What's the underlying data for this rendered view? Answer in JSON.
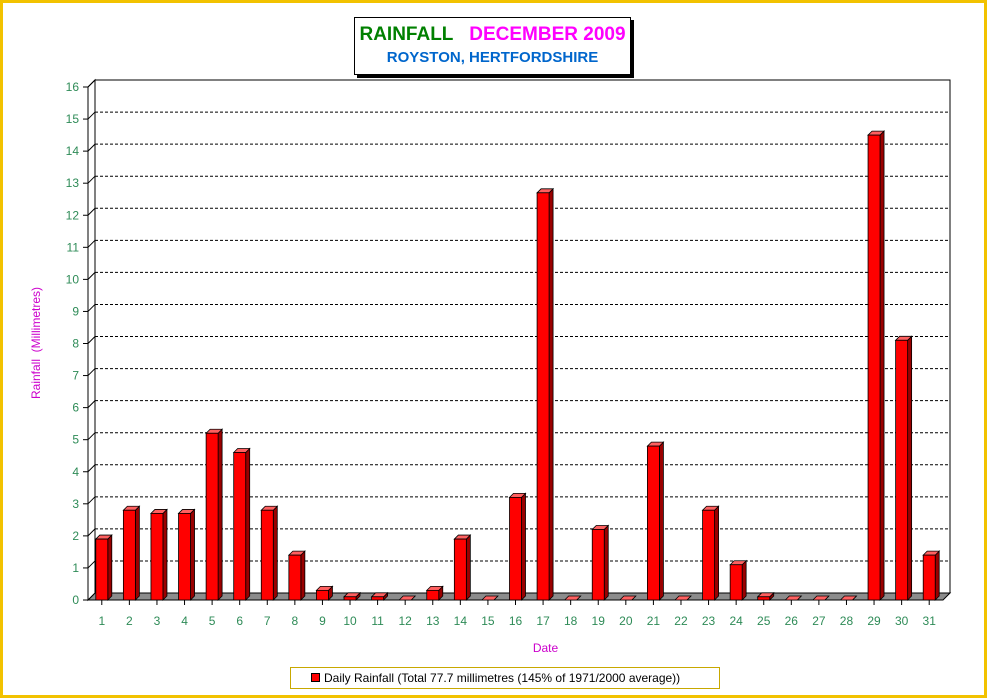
{
  "title": {
    "part1": "RAINFALL",
    "part2": "DECEMBER 2009",
    "subtitle": "ROYSTON, HERTFORDSHIRE"
  },
  "colors": {
    "frame": "#f2c200",
    "title_part1": "#008000",
    "title_part2": "#ff00ff",
    "subtitle": "#0066cc",
    "bar_front": "#ff0000",
    "bar_top": "#ff6060",
    "bar_side": "#9a0000",
    "axis_text": "#2e8b57",
    "axis_title": "#cc00cc"
  },
  "legend": {
    "label": "Daily Rainfall (Total 77.7 millimetres (145% of 1971/2000 average))"
  },
  "chart_data": {
    "type": "bar",
    "xlabel": "Date",
    "ylabel": "Rainfall  (Millimetres)",
    "ylim": [
      0,
      16
    ],
    "yticks": [
      0,
      1,
      2,
      3,
      4,
      5,
      6,
      7,
      8,
      9,
      10,
      11,
      12,
      13,
      14,
      15,
      16
    ],
    "grid": true,
    "legend_position": "bottom",
    "categories": [
      "1",
      "2",
      "3",
      "4",
      "5",
      "6",
      "7",
      "8",
      "9",
      "10",
      "11",
      "12",
      "13",
      "14",
      "15",
      "16",
      "17",
      "18",
      "19",
      "20",
      "21",
      "22",
      "23",
      "24",
      "25",
      "26",
      "27",
      "28",
      "29",
      "30",
      "31"
    ],
    "series": [
      {
        "name": "Daily Rainfall (Total 77.7 millimetres (145% of 1971/2000 average))",
        "values": [
          1.9,
          2.8,
          2.7,
          2.7,
          5.2,
          4.6,
          2.8,
          1.4,
          0.3,
          0.1,
          0.1,
          0.0,
          0.3,
          1.9,
          0.0,
          3.2,
          12.7,
          0.0,
          2.2,
          0.0,
          4.8,
          0.0,
          2.8,
          1.1,
          0.1,
          0.0,
          0.0,
          0.0,
          14.5,
          8.1,
          1.4
        ]
      }
    ]
  }
}
